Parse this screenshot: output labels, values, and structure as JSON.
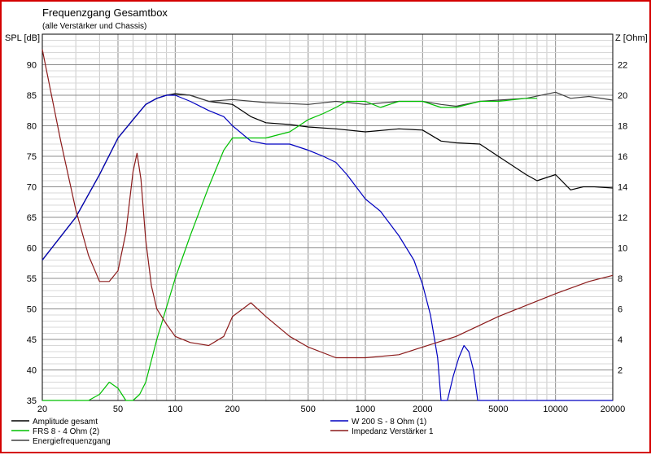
{
  "chart_data": {
    "type": "line",
    "title": "Frequenzgang Gesamtbox",
    "subtitle": "(alle Verstärker und Chassis)",
    "ylabel": "SPL [dB]",
    "y2label": "Z [Ohm]",
    "xscale": "log",
    "xlim": [
      20,
      20000
    ],
    "ylim": [
      35,
      95
    ],
    "y2lim": [
      0,
      24
    ],
    "grid": true,
    "x_ticks": [
      "20",
      "50",
      "100",
      "200",
      "500",
      "1000",
      "2000",
      "5000",
      "10000",
      "20000"
    ],
    "y_ticks": [
      "35",
      "40",
      "45",
      "50",
      "55",
      "60",
      "65",
      "70",
      "75",
      "80",
      "85",
      "90"
    ],
    "y2_ticks": [
      "2",
      "4",
      "6",
      "8",
      "10",
      "12",
      "14",
      "16",
      "18",
      "20",
      "22"
    ],
    "legend_position": "bottom",
    "series": [
      {
        "name": "Amplitude gesamt",
        "color": "#000000",
        "axis": "left",
        "x": [
          20,
          30,
          40,
          50,
          60,
          70,
          80,
          90,
          100,
          120,
          150,
          200,
          250,
          300,
          400,
          500,
          700,
          1000,
          1500,
          2000,
          2500,
          3000,
          4000,
          5000,
          7000,
          8000,
          10000,
          12000,
          14000,
          16000,
          20000
        ],
        "y": [
          58,
          65,
          72,
          78,
          81,
          83.5,
          84.5,
          85,
          85.2,
          85,
          84,
          83.5,
          81.5,
          80.5,
          80.2,
          79.8,
          79.5,
          79,
          79.5,
          79.3,
          77.5,
          77.2,
          77,
          75,
          72,
          71,
          72,
          69.5,
          70,
          70,
          69.8
        ]
      },
      {
        "name": "Energiefrequenzgang",
        "color": "#404040",
        "axis": "left",
        "x": [
          20,
          30,
          40,
          50,
          60,
          70,
          80,
          90,
          100,
          120,
          150,
          200,
          300,
          500,
          700,
          1000,
          1500,
          2000,
          2500,
          3000,
          4000,
          5000,
          7000,
          10000,
          12000,
          15000,
          20000
        ],
        "y": [
          58,
          65,
          72,
          78,
          81,
          83.5,
          84.5,
          85,
          85.3,
          85,
          84,
          84.3,
          83.8,
          83.5,
          84,
          83.5,
          84,
          84,
          83.5,
          83.2,
          84,
          84.2,
          84.5,
          85.5,
          84.5,
          84.8,
          84.2
        ]
      },
      {
        "name": "FRS 8 - 4 Ohm (2)",
        "color": "#00c000",
        "axis": "left",
        "x": [
          20,
          35,
          40,
          45,
          50,
          55,
          60,
          65,
          70,
          80,
          100,
          120,
          150,
          180,
          200,
          250,
          300,
          400,
          500,
          600,
          700,
          800,
          1000,
          1200,
          1500,
          2000,
          2500,
          3000,
          4000,
          5000,
          7000,
          8000
        ],
        "y": [
          35,
          35,
          36,
          38,
          37,
          35,
          35,
          36,
          38,
          45,
          55,
          62,
          70,
          76,
          78,
          78,
          78,
          79,
          81,
          82,
          83,
          84,
          84,
          83,
          84,
          84,
          83,
          83,
          84,
          84,
          84.5,
          84.5
        ]
      },
      {
        "name": "W 200 S - 8 Ohm (1)",
        "color": "#0000c0",
        "axis": "left",
        "x": [
          20,
          30,
          40,
          50,
          60,
          70,
          80,
          90,
          100,
          120,
          150,
          180,
          200,
          250,
          300,
          400,
          500,
          600,
          700,
          800,
          1000,
          1200,
          1500,
          1800,
          2000,
          2200,
          2400,
          2500,
          2700,
          2900,
          3100,
          3300,
          3500,
          3700,
          3900,
          4100,
          4500,
          5000,
          10000,
          20000
        ],
        "y": [
          58,
          65,
          72,
          78,
          81,
          83.5,
          84.5,
          85,
          85,
          84,
          82.5,
          81.5,
          80,
          77.5,
          77,
          77,
          76,
          75,
          74,
          72,
          68,
          66,
          62,
          58,
          54,
          49,
          42,
          35,
          35,
          39,
          42,
          44,
          43,
          40,
          35,
          35,
          35,
          35,
          35,
          35
        ]
      },
      {
        "name": "Impedanz Verstärker 1",
        "color": "#8b1a1a",
        "axis": "right",
        "x": [
          20,
          25,
          30,
          35,
          40,
          45,
          50,
          55,
          60,
          63,
          66,
          70,
          75,
          80,
          90,
          100,
          120,
          150,
          180,
          200,
          250,
          300,
          400,
          500,
          700,
          1000,
          1500,
          2000,
          3000,
          5000,
          10000,
          15000,
          20000
        ],
        "y": [
          23,
          17,
          12.5,
          9.5,
          7.8,
          7.8,
          8.5,
          11,
          15,
          16.2,
          14.5,
          10.5,
          7.5,
          6,
          5,
          4.2,
          3.8,
          3.6,
          4.2,
          5.5,
          6.4,
          5.5,
          4.2,
          3.5,
          2.8,
          2.8,
          3,
          3.5,
          4.2,
          5.5,
          7,
          7.8,
          8.2
        ]
      }
    ]
  }
}
